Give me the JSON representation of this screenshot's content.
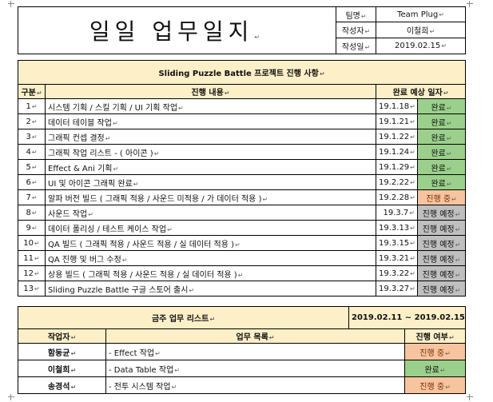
{
  "header": {
    "title": "일일 업무일지",
    "team_label": "팀명",
    "team_value": "Team Plug",
    "writer_label": "작성자",
    "writer_value": "이철희",
    "date_label": "작성일",
    "date_value": "2019.02.15"
  },
  "progress": {
    "title": "Sliding Puzzle Battle 프로젝트 진행 사항",
    "col_no": "구분",
    "col_content": "진행 내용",
    "col_date": "완료 예상 일자",
    "rows": [
      {
        "no": "1",
        "content": "시스템 기획 / 스킬 기획 / UI 기획 작업",
        "date": "19.1.18",
        "status": "완료",
        "status_type": "done"
      },
      {
        "no": "2",
        "content": "데이터 테이블 작업",
        "date": "19.1.21",
        "status": "완료",
        "status_type": "done"
      },
      {
        "no": "3",
        "content": "그래픽 컨셉 결정",
        "date": "19.1.22",
        "status": "완료",
        "status_type": "done"
      },
      {
        "no": "4",
        "content": "그래픽 작업 리스트 - ( 아이콘 )",
        "date": "19.1.24",
        "status": "완료",
        "status_type": "done"
      },
      {
        "no": "5",
        "content": "Effect & Ani 기획",
        "date": "19.1.29",
        "status": "완료",
        "status_type": "done"
      },
      {
        "no": "6",
        "content": "UI 및 아이콘 그래픽 완료",
        "date": "19.2.22",
        "status": "완료",
        "status_type": "done"
      },
      {
        "no": "7",
        "content": "알파 버전 빌드 ( 그래픽 적용 / 사운드 미적용 / 가 데이터 적용 )",
        "date": "19.2.28",
        "status": "진행 중",
        "status_type": "progress"
      },
      {
        "no": "8",
        "content": "사운드 작업",
        "date": "19.3.7",
        "status": "진행 예정",
        "status_type": "planned"
      },
      {
        "no": "9",
        "content": "데이터 폴리싱 / 테스트 케이스 작업",
        "date": "19.3.13",
        "status": "진행 예정",
        "status_type": "planned"
      },
      {
        "no": "10",
        "content": "QA 빌드 ( 그래픽 적용 / 사운드 적용 / 실 데이터 적용 )",
        "date": "19.3.15",
        "status": "진행 예정",
        "status_type": "planned"
      },
      {
        "no": "11",
        "content": "QA 진행 및 버그 수정",
        "date": "19.3.21",
        "status": "진행 예정",
        "status_type": "planned"
      },
      {
        "no": "12",
        "content": "상용 빌드 ( 그래픽 적용 / 사운드 적용 / 실 데이터 적용 )",
        "date": "19.3.22",
        "status": "진행 예정",
        "status_type": "planned"
      },
      {
        "no": "13",
        "content": "Sliding Puzzle Battle 구글 스토어 출시",
        "date": "19.3.27",
        "status": "진행 예정",
        "status_type": "planned"
      }
    ]
  },
  "weekly": {
    "title": "금주 업무 리스트",
    "period": "2019.02.11 ~ 2019.02.15",
    "col_worker": "작업자",
    "col_list": "업무 목록",
    "col_status": "진행 여부",
    "rows": [
      {
        "worker": "함동균",
        "task": "- Effect 작업",
        "status": "진행 중",
        "status_type": "progress"
      },
      {
        "worker": "이철희",
        "task": "- Data Table 작업",
        "status": "완료",
        "status_type": "done"
      },
      {
        "worker": "송경석",
        "task": "- 전투 시스템 작업",
        "status": "진행 중",
        "status_type": "progress"
      }
    ]
  },
  "colors": {
    "header_bg": "#fdefc8",
    "done": "#9bd08c",
    "progress": "#f6c49e",
    "planned": "#bfbfbf"
  }
}
